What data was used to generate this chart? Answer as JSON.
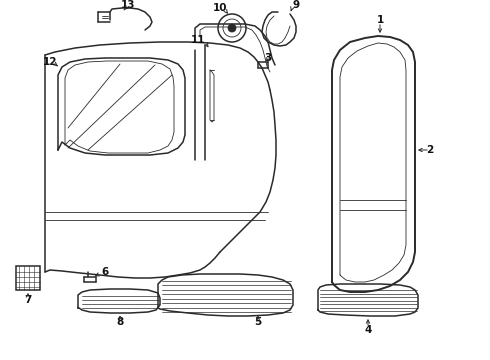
{
  "bg_color": "#ffffff",
  "line_color": "#2a2a2a",
  "label_color": "#111111",
  "lw_main": 1.1,
  "lw_thin": 0.6,
  "lw_thick": 1.4,
  "figsize": [
    4.9,
    3.6
  ],
  "dpi": 100
}
